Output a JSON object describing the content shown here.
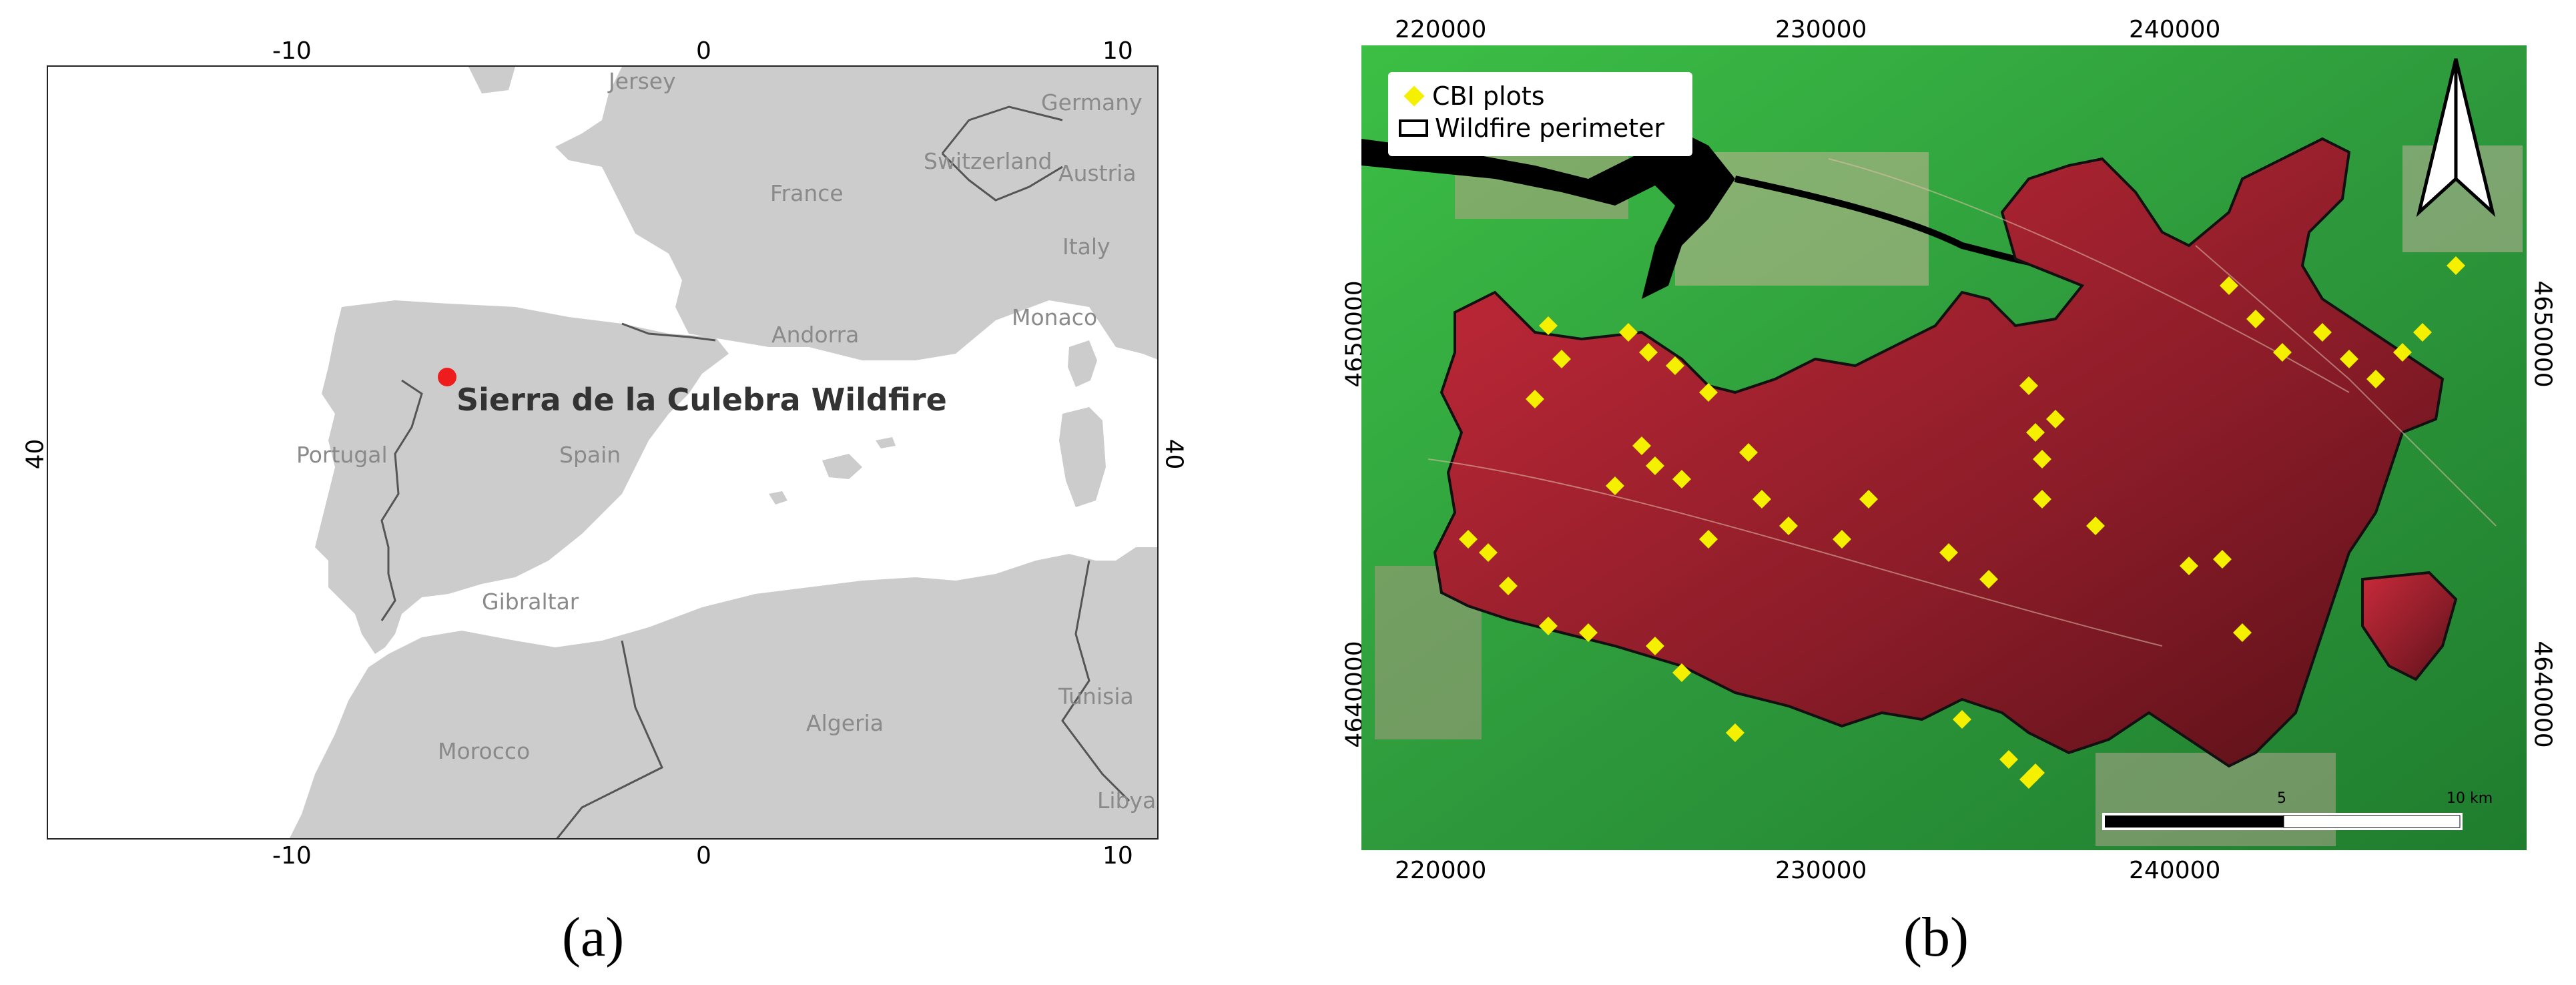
{
  "panel_a": {
    "label": "(a)",
    "ticks_top": [
      "-10",
      "0",
      "10"
    ],
    "ticks_bottom": [
      "-10",
      "0",
      "10"
    ],
    "tick_left": "40",
    "tick_right": "40",
    "highlight_label": "Sierra de la Culebra Wildfire",
    "highlight_color": "#ee1c1c",
    "land_color": "#cccccc",
    "sea_color": "#ffffff",
    "places": [
      {
        "name": "Jersey"
      },
      {
        "name": "Germany"
      },
      {
        "name": "Switzerland"
      },
      {
        "name": "Austria"
      },
      {
        "name": "France"
      },
      {
        "name": "Italy"
      },
      {
        "name": "Monaco"
      },
      {
        "name": "Andorra"
      },
      {
        "name": "Portugal"
      },
      {
        "name": "Spain"
      },
      {
        "name": "Gibraltar"
      },
      {
        "name": "Tunisia"
      },
      {
        "name": "Algeria"
      },
      {
        "name": "Morocco"
      },
      {
        "name": "Libya"
      }
    ]
  },
  "panel_b": {
    "label": "(b)",
    "ticks_top": [
      "220000",
      "230000",
      "240000"
    ],
    "ticks_bottom": [
      "220000",
      "230000",
      "240000"
    ],
    "ticks_left": [
      "4650000",
      "4640000"
    ],
    "ticks_right": [
      "4650000",
      "4640000"
    ],
    "legend": {
      "plots_label": "CBI plots",
      "perimeter_label": "Wildfire perimeter"
    },
    "scalebar": {
      "mid": "5",
      "end": "10 km"
    },
    "plot_color": "#f5f000",
    "burn_color": "#a8202c",
    "vegetation_color": "#2fae3a"
  }
}
